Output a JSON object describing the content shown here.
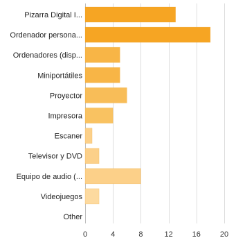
{
  "chart_data": {
    "type": "bar",
    "orientation": "horizontal",
    "categories": [
      "Pizarra Digital I...",
      "Ordenador persona...",
      "Ordenadores (disp...",
      "Miniportátiles",
      "Proyector",
      "Impresora",
      "Escaner",
      "Televisor y DVD",
      "Equipo de audio (...",
      "Videojuegos",
      "Other"
    ],
    "values": [
      13,
      18,
      5,
      5,
      6,
      4,
      1,
      2,
      8,
      2,
      0
    ],
    "colors": [
      "#f6a523",
      "#f6a523",
      "#f8b546",
      "#f8b546",
      "#f8bd58",
      "#f9c261",
      "#fcd089",
      "#fcd089",
      "#fcd089",
      "#fdda9f",
      "#fdda9f"
    ],
    "xlim": [
      0,
      20
    ],
    "xticks": [
      0,
      4,
      8,
      12,
      16,
      20
    ],
    "grid": true,
    "title": "",
    "xlabel": "",
    "ylabel": ""
  }
}
